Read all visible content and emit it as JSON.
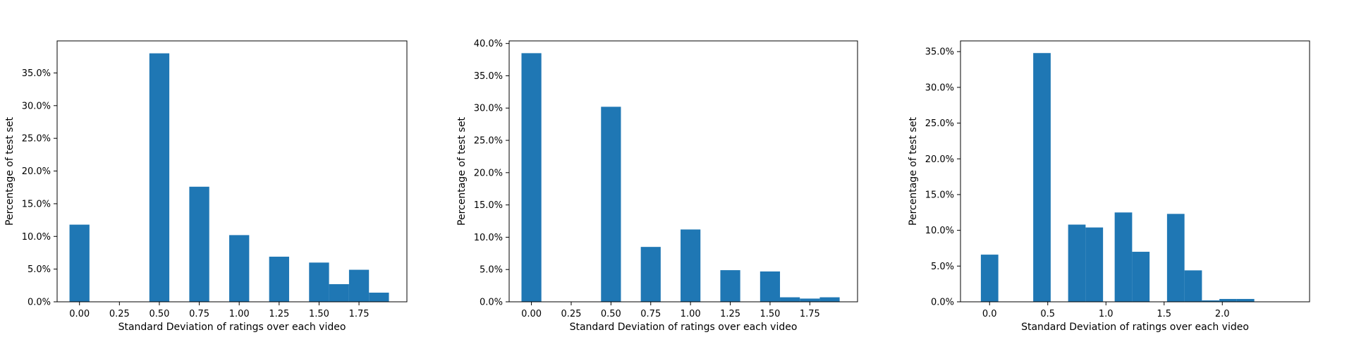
{
  "chart_data": [
    {
      "type": "bar",
      "title": "",
      "xlabel": "Standard Deviation of ratings over each video",
      "ylabel": "Percentage of test set",
      "xlim": [
        -0.14,
        2.05
      ],
      "ylim": [
        0,
        0.399
      ],
      "xticks": [
        0.0,
        0.25,
        0.5,
        0.75,
        1.0,
        1.25,
        1.5,
        1.75
      ],
      "xtick_labels": [
        "0.00",
        "0.25",
        "0.50",
        "0.75",
        "1.00",
        "1.25",
        "1.50",
        "1.75"
      ],
      "yticks": [
        0.0,
        0.05,
        0.1,
        0.15,
        0.2,
        0.25,
        0.3,
        0.35
      ],
      "ytick_labels": [
        "0.0%",
        "5.0%",
        "10.0%",
        "15.0%",
        "20.0%",
        "25.0%",
        "30.0%",
        "35.0%"
      ],
      "bar_width": 0.125,
      "bars": [
        {
          "x": 0.0,
          "value": 0.118
        },
        {
          "x": 0.5,
          "value": 0.38
        },
        {
          "x": 0.75,
          "value": 0.176
        },
        {
          "x": 1.0,
          "value": 0.102
        },
        {
          "x": 1.25,
          "value": 0.069
        },
        {
          "x": 1.5,
          "value": 0.06
        },
        {
          "x": 1.625,
          "value": 0.027
        },
        {
          "x": 1.75,
          "value": 0.049
        },
        {
          "x": 1.875,
          "value": 0.014
        }
      ],
      "color": "#1f77b4",
      "grid": false
    },
    {
      "type": "bar",
      "title": "",
      "xlabel": "Standard Deviation of ratings over each video",
      "ylabel": "Percentage of test set",
      "xlim": [
        -0.14,
        2.05
      ],
      "ylim": [
        0,
        0.404
      ],
      "xticks": [
        0.0,
        0.25,
        0.5,
        0.75,
        1.0,
        1.25,
        1.5,
        1.75
      ],
      "xtick_labels": [
        "0.00",
        "0.25",
        "0.50",
        "0.75",
        "1.00",
        "1.25",
        "1.50",
        "1.75"
      ],
      "yticks": [
        0.0,
        0.05,
        0.1,
        0.15,
        0.2,
        0.25,
        0.3,
        0.35,
        0.4
      ],
      "ytick_labels": [
        "0.0%",
        "5.0%",
        "10.0%",
        "15.0%",
        "20.0%",
        "25.0%",
        "30.0%",
        "35.0%",
        "40.0%"
      ],
      "bar_width": 0.125,
      "bars": [
        {
          "x": 0.0,
          "value": 0.385
        },
        {
          "x": 0.5,
          "value": 0.302
        },
        {
          "x": 0.75,
          "value": 0.085
        },
        {
          "x": 1.0,
          "value": 0.112
        },
        {
          "x": 1.25,
          "value": 0.049
        },
        {
          "x": 1.5,
          "value": 0.047
        },
        {
          "x": 1.625,
          "value": 0.007
        },
        {
          "x": 1.75,
          "value": 0.005
        },
        {
          "x": 1.875,
          "value": 0.007
        }
      ],
      "color": "#1f77b4",
      "grid": false
    },
    {
      "type": "bar",
      "title": "",
      "xlabel": "Standard Deviation of ratings over each video",
      "ylabel": "Percentage of test set",
      "xlim": [
        -0.25,
        2.75
      ],
      "ylim": [
        0,
        0.365
      ],
      "xticks": [
        0.0,
        0.5,
        1.0,
        1.5,
        2.0
      ],
      "xtick_labels": [
        "0.0",
        "0.5",
        "1.0",
        "1.5",
        "2.0"
      ],
      "yticks": [
        0.0,
        0.05,
        0.1,
        0.15,
        0.2,
        0.25,
        0.3,
        0.35
      ],
      "ytick_labels": [
        "0.0%",
        "5.0%",
        "10.0%",
        "15.0%",
        "20.0%",
        "25.0%",
        "30.0%",
        "35.0%"
      ],
      "bar_width": 0.15,
      "bars": [
        {
          "x": 0.0,
          "value": 0.066
        },
        {
          "x": 0.45,
          "value": 0.348
        },
        {
          "x": 0.75,
          "value": 0.108
        },
        {
          "x": 0.9,
          "value": 0.104
        },
        {
          "x": 1.15,
          "value": 0.125
        },
        {
          "x": 1.3,
          "value": 0.07
        },
        {
          "x": 1.6,
          "value": 0.123
        },
        {
          "x": 1.75,
          "value": 0.044
        },
        {
          "x": 1.9,
          "value": 0.002
        },
        {
          "x": 2.05,
          "value": 0.004
        },
        {
          "x": 2.2,
          "value": 0.004
        }
      ],
      "color": "#1f77b4",
      "grid": false
    }
  ]
}
